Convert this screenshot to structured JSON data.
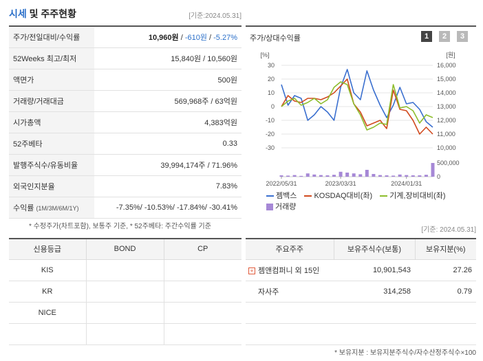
{
  "header": {
    "title_main": "시세",
    "title_rest": " 및 주주현황",
    "date": "[기준:2024.05.31]"
  },
  "info": [
    {
      "key": "주가/전일대비/수익률",
      "v1": "10,960원",
      "v2": " / ",
      "v3": "-610원",
      "v4": " / ",
      "v5": "-5.27%"
    },
    {
      "key": "52Weeks 최고/최저",
      "value": "15,840원 / 10,560원"
    },
    {
      "key": "액면가",
      "value": "500원"
    },
    {
      "key": "거래량/거래대금",
      "value": "569,968주 / 63억원"
    },
    {
      "key": "시가총액",
      "value": "4,383억원"
    },
    {
      "key": "52주베타",
      "value": "0.33"
    },
    {
      "key": "발행주식수/유동비율",
      "value": "39,994,174주 / 71.96%"
    },
    {
      "key": "외국인지분율",
      "value": "7.83%"
    },
    {
      "key": "수익률",
      "key_sub": "(1M/3M/6M/1Y)",
      "value": "-7.35%/ -10.53%/ -17.84%/ -30.41%"
    }
  ],
  "note_left": "* 수정주가(차트포함), 보통주 기준, * 52주베타: 주간수익률 기준",
  "chart": {
    "title": "주가/상대수익률",
    "pages": [
      "1",
      "2",
      "3"
    ],
    "left_unit": "[%]",
    "right_unit": "[원]",
    "left_ticks": [
      "30",
      "20",
      "10",
      "0",
      "-10",
      "-20",
      "-30"
    ],
    "right_ticks": [
      "16,000",
      "15,000",
      "14,000",
      "13,000",
      "12,000",
      "11,000",
      "10,000"
    ],
    "vol_ticks": [
      "500,000",
      "0"
    ],
    "x_ticks": [
      "2022/05/31",
      "2023/03/31",
      "2024/01/31"
    ],
    "legend": [
      "젬백스",
      "KOSDAQ대비(좌)",
      "기계,장비대비(좌)",
      "거래량"
    ],
    "colors": {
      "stock": "#3a6fcf",
      "kosdaq": "#d14a1e",
      "machine": "#8dbd2c",
      "volume": "#a688d6"
    }
  },
  "chart_data": {
    "type": "line",
    "x": [
      "2022/05/31",
      "2022/07",
      "2022/08",
      "2022/09",
      "2022/10",
      "2022/11",
      "2022/12",
      "2023/01",
      "2023/02",
      "2023/03",
      "2023/04",
      "2023/05",
      "2023/06",
      "2023/07",
      "2023/08",
      "2023/09",
      "2023/10",
      "2023/11",
      "2023/12",
      "2024/01/31",
      "2024/02",
      "2024/03",
      "2024/04",
      "2024/05/31"
    ],
    "series": [
      {
        "name": "젬백스",
        "axis": "left",
        "values": [
          16,
          1,
          8,
          6,
          -10,
          -6,
          0,
          -4,
          -10,
          14,
          27,
          10,
          5,
          26,
          12,
          1,
          -8,
          1,
          14,
          2,
          3,
          -2,
          -11,
          -15
        ]
      },
      {
        "name": "KOSDAQ대비(좌)",
        "axis": "left",
        "values": [
          0,
          8,
          4,
          3,
          6,
          6,
          5,
          7,
          10,
          15,
          20,
          2,
          -4,
          -14,
          -12,
          -10,
          -16,
          12,
          -2,
          -3,
          -10,
          -20,
          -15,
          -20
        ]
      },
      {
        "name": "기계,장비대비(좌)",
        "axis": "left",
        "values": [
          0,
          4,
          6,
          1,
          3,
          6,
          2,
          5,
          14,
          18,
          16,
          2,
          -6,
          -17,
          -15,
          -12,
          -13,
          16,
          -1,
          0,
          -3,
          -12,
          -6,
          -8
        ]
      },
      {
        "name": "거래량",
        "axis": "volume",
        "values": [
          50000,
          40000,
          60000,
          30000,
          120000,
          80000,
          60000,
          50000,
          70000,
          180000,
          150000,
          120000,
          90000,
          250000,
          100000,
          60000,
          50000,
          40000,
          80000,
          60000,
          50000,
          50000,
          70000,
          500000
        ]
      }
    ],
    "ylim": [
      -30,
      30
    ],
    "y2lim": [
      10000,
      16000
    ],
    "vollim": [
      0,
      500000
    ]
  },
  "date_right": "[기준: 2024.05.31]",
  "grades": {
    "headers": [
      "신용등급",
      "BOND",
      "CP"
    ],
    "rows": [
      [
        "KIS",
        "",
        ""
      ],
      [
        "KR",
        "",
        ""
      ],
      [
        "NICE",
        "",
        ""
      ],
      [
        "",
        "",
        ""
      ]
    ]
  },
  "holders": {
    "headers": [
      "주요주주",
      "보유주식수(보통)",
      "보유지분(%)"
    ],
    "rows": [
      {
        "name": "젬앤컴퍼니 외 15인",
        "shares": "10,901,543",
        "pct": "27.26",
        "expandable": true
      },
      {
        "name": "자사주",
        "shares": "314,258",
        "pct": "0.79",
        "expandable": false
      },
      {
        "name": "",
        "shares": "",
        "pct": "",
        "expandable": false
      },
      {
        "name": "",
        "shares": "",
        "pct": "",
        "expandable": false
      }
    ]
  },
  "note_right": "* 보유지분 : 보유지분주식수/자수산정주식수×100"
}
